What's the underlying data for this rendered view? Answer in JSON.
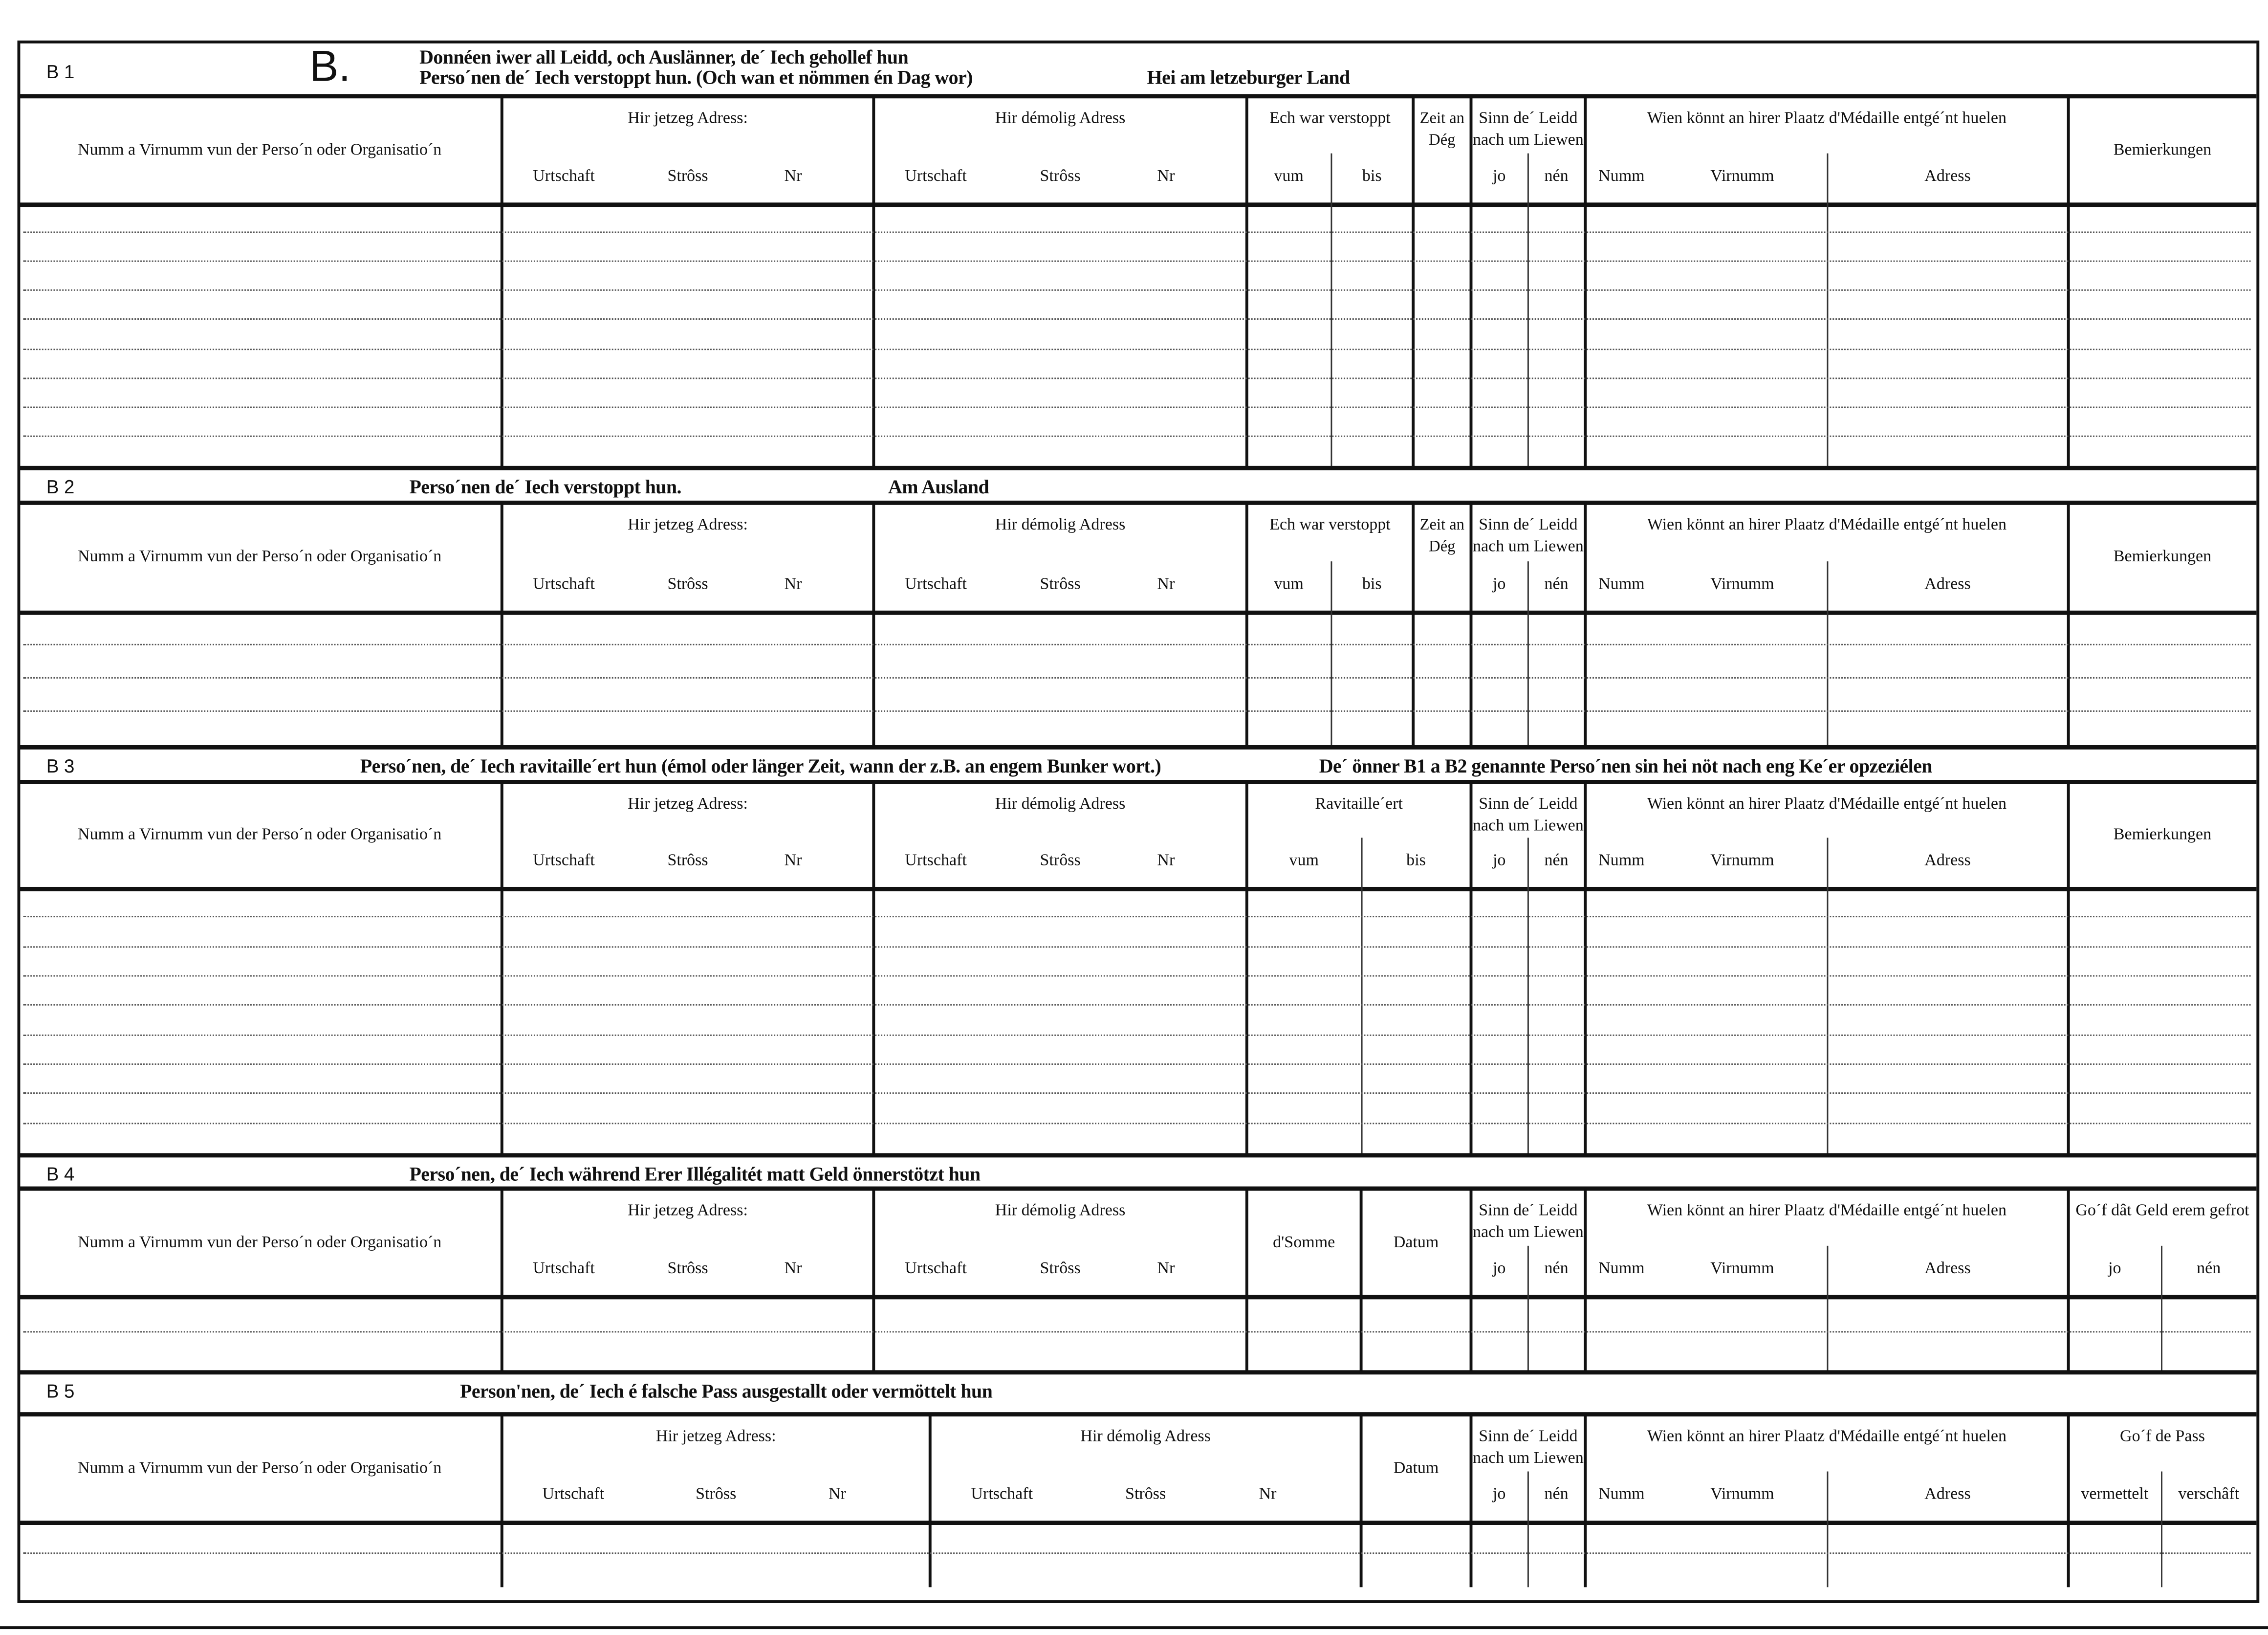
{
  "form": {
    "big_letter": "B.",
    "sections": [
      {
        "code": "B 1",
        "heading": [
          "Donnéen iwer all Leidd, och Auslänner, de´ Iech gehollef hun",
          "Perso´nen de´ Iech verstoppt hun. (Och wan et nömmen én Dag wor)"
        ],
        "heading_extra": "Hei am letzeburger Land",
        "columns": [
          {
            "label": "Numm a Virnumm vun der Perso´n oder Organisatio´n",
            "subs": []
          },
          {
            "label": "Hir jetzeg Adress:",
            "subs": [
              "Urtschaft",
              "Strôss",
              "Nr"
            ]
          },
          {
            "label": "Hir démolig Adress",
            "subs": [
              "Urtschaft",
              "Strôss",
              "Nr"
            ]
          },
          {
            "label": "Ech war verstoppt",
            "subs": [
              "vum",
              "bis"
            ]
          },
          {
            "label": "Zeit an Dég",
            "subs": []
          },
          {
            "label": "Sinn de´ Leidd nach um Liewen",
            "subs": [
              "jo",
              "nén"
            ]
          },
          {
            "label": "Wien könnt an hirer Plaatz d'Médaille entgé´nt huelen",
            "subs": [
              "Numm",
              "Virnumm",
              "Adress"
            ]
          },
          {
            "label": "Bemierkungen",
            "subs": []
          }
        ]
      },
      {
        "code": "B 2",
        "heading": [
          "Perso´nen de´ Iech verstoppt hun."
        ],
        "heading_extra": "Am Ausland",
        "columns": [
          {
            "label": "Numm a Virnumm vun der Perso´n oder Organisatio´n",
            "subs": []
          },
          {
            "label": "Hir jetzeg Adress:",
            "subs": [
              "Urtschaft",
              "Strôss",
              "Nr"
            ]
          },
          {
            "label": "Hir démolig Adress",
            "subs": [
              "Urtschaft",
              "Strôss",
              "Nr"
            ]
          },
          {
            "label": "Ech war verstoppt",
            "subs": [
              "vum",
              "bis"
            ]
          },
          {
            "label": "Zeit an Dég",
            "subs": []
          },
          {
            "label": "Sinn de´ Leidd nach um Liewen",
            "subs": [
              "jo",
              "nén"
            ]
          },
          {
            "label": "Wien könnt an hirer Plaatz d'Médaille entgé´nt huelen",
            "subs": [
              "Numm",
              "Virnumm",
              "Adress"
            ]
          },
          {
            "label": "Bemierkungen",
            "subs": []
          }
        ]
      },
      {
        "code": "B 3",
        "heading": [
          "Perso´nen, de´ Iech ravitaille´ert hun (émol oder länger Zeit, wann der z.B. an engem Bunker wort.)"
        ],
        "heading_extra": "De´ önner B1 a B2 genannte Perso´nen sin hei nöt nach eng Ke´er opzeziélen",
        "columns": [
          {
            "label": "Numm a Virnumm vun der Perso´n oder Organisatio´n",
            "subs": []
          },
          {
            "label": "Hir jetzeg Adress:",
            "subs": [
              "Urtschaft",
              "Strôss",
              "Nr"
            ]
          },
          {
            "label": "Hir démolig Adress",
            "subs": [
              "Urtschaft",
              "Strôss",
              "Nr"
            ]
          },
          {
            "label": "Ravitaille´ert",
            "subs": [
              "vum",
              "bis"
            ]
          },
          {
            "label": "Sinn de´ Leidd nach um Liewen",
            "subs": [
              "jo",
              "nén"
            ]
          },
          {
            "label": "Wien könnt an hirer Plaatz d'Médaille entgé´nt huelen",
            "subs": [
              "Numm",
              "Virnumm",
              "Adress"
            ]
          },
          {
            "label": "Bemierkungen",
            "subs": []
          }
        ]
      },
      {
        "code": "B 4",
        "heading": [
          "Perso´nen, de´ Iech während Erer Illégalitét matt Geld önnerstötzt hun"
        ],
        "heading_extra": "",
        "columns": [
          {
            "label": "Numm a Virnumm vun der Perso´n oder Organisatio´n",
            "subs": []
          },
          {
            "label": "Hir jetzeg Adress:",
            "subs": [
              "Urtschaft",
              "Strôss",
              "Nr"
            ]
          },
          {
            "label": "Hir démolig Adress",
            "subs": [
              "Urtschaft",
              "Strôss",
              "Nr"
            ]
          },
          {
            "label": "d'Somme",
            "subs": []
          },
          {
            "label": "Datum",
            "subs": []
          },
          {
            "label": "Sinn de´ Leidd nach um Liewen",
            "subs": [
              "jo",
              "nén"
            ]
          },
          {
            "label": "Wien könnt an hirer Plaatz d'Médaille entgé´nt huelen",
            "subs": [
              "Numm",
              "Virnumm",
              "Adress"
            ]
          },
          {
            "label": "Go´f dât Geld erem gefrot",
            "subs": [
              "jo",
              "nén"
            ]
          }
        ]
      },
      {
        "code": "B 5",
        "heading": [
          "Person'nen, de´ Iech é falsche Pass ausgestallt oder vermöttelt hun"
        ],
        "heading_extra": "",
        "columns": [
          {
            "label": "Numm a Virnumm vun der Perso´n oder Organisatio´n",
            "subs": []
          },
          {
            "label": "Hir jetzeg Adress:",
            "subs": [
              "Urtschaft",
              "Strôss",
              "Nr"
            ]
          },
          {
            "label": "Hir démolig Adress",
            "subs": [
              "Urtschaft",
              "Strôss",
              "Nr"
            ]
          },
          {
            "label": "Datum",
            "subs": []
          },
          {
            "label": "Sinn de´ Leidd nach um Liewen",
            "subs": [
              "jo",
              "nén"
            ]
          },
          {
            "label": "Wien könnt an hirer Plaatz d'Médaille entgé´nt huelen",
            "subs": [
              "Numm",
              "Virnumm",
              "Adress"
            ]
          },
          {
            "label": "Go´f de Pass",
            "subs": [
              "vermettelt",
              "verschâft"
            ]
          }
        ]
      }
    ]
  }
}
